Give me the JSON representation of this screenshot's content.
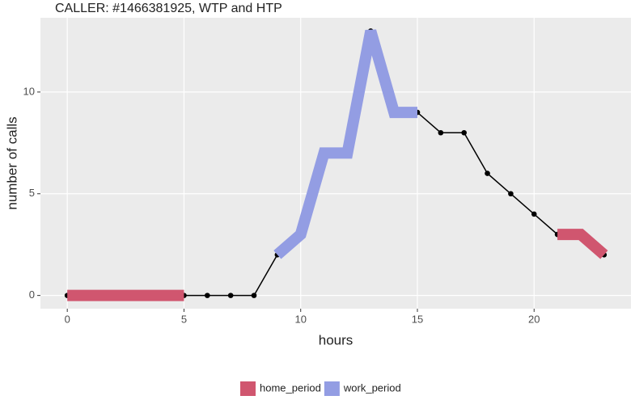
{
  "chart_data": {
    "type": "line",
    "title": "CALLER: #1466381925, WTP and HTP",
    "x_label": "hours",
    "y_label": "number of calls",
    "x": [
      0,
      1,
      2,
      3,
      4,
      5,
      6,
      7,
      8,
      9,
      10,
      11,
      12,
      13,
      14,
      15,
      16,
      17,
      18,
      19,
      20,
      21,
      22,
      23
    ],
    "values": [
      0,
      0,
      0,
      0,
      0,
      0,
      0,
      0,
      0,
      2,
      3,
      7,
      7,
      13,
      9,
      9,
      8,
      8,
      6,
      5,
      4,
      3,
      3,
      2
    ],
    "color": "#000000",
    "series": [
      {
        "name": "home_period",
        "color": "#d0566f",
        "values": [
          0,
          0,
          0,
          0,
          0,
          0,
          null,
          null,
          null,
          null,
          null,
          null,
          null,
          null,
          null,
          null,
          null,
          null,
          null,
          null,
          null,
          3,
          3,
          2
        ]
      },
      {
        "name": "work_period",
        "color": "#939de3",
        "values": [
          null,
          null,
          null,
          null,
          null,
          null,
          null,
          null,
          null,
          2,
          3,
          7,
          7,
          13,
          9,
          9,
          null,
          null,
          null,
          null,
          null,
          null,
          null,
          null
        ]
      }
    ],
    "xlim": [
      -1.15,
      24.15
    ],
    "ylim": [
      -0.65,
      13.65
    ],
    "xticks": [
      0,
      5,
      10,
      15,
      20
    ],
    "yticks": [
      0,
      5,
      10
    ],
    "grid": true,
    "legend": "bottom"
  }
}
